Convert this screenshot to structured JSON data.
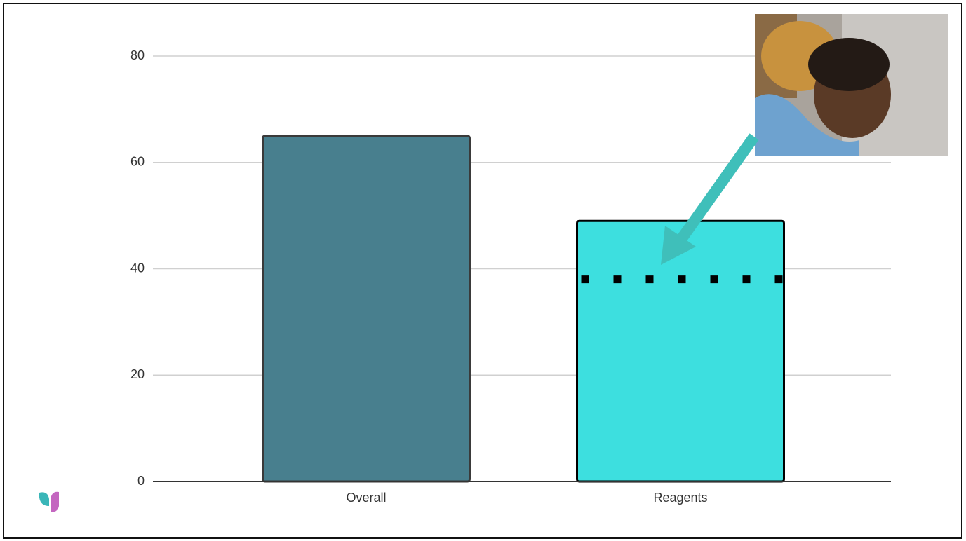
{
  "chart_data": {
    "type": "bar",
    "categories": [
      "Overall",
      "Reagents"
    ],
    "values": [
      65,
      49
    ],
    "colors": [
      "#487f8e",
      "#3ddfdf"
    ],
    "reference_line": 38,
    "ylim": [
      0,
      80
    ],
    "yticks": [
      0,
      20,
      40,
      60,
      80
    ],
    "grid": true
  }
}
